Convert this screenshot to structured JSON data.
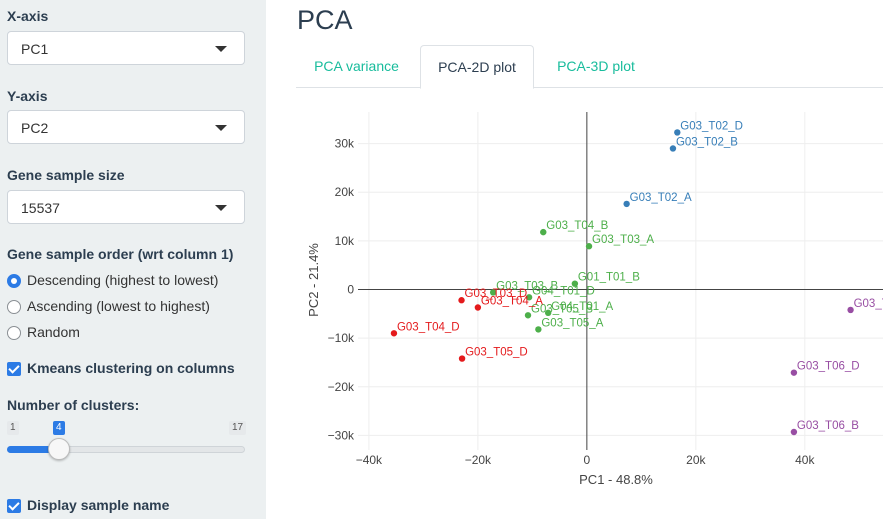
{
  "sidebar": {
    "x_axis": {
      "label": "X-axis",
      "value": "PC1"
    },
    "y_axis": {
      "label": "Y-axis",
      "value": "PC2"
    },
    "gene_sample_size": {
      "label": "Gene sample size",
      "value": "15537"
    },
    "gene_sample_order": {
      "label": "Gene sample order (wrt column 1)",
      "options": [
        "Descending (highest to lowest)",
        "Ascending (lowest to highest)",
        "Random"
      ],
      "selected": "Descending (highest to lowest)"
    },
    "kmeans": {
      "label": "Kmeans clustering on columns",
      "checked": true
    },
    "clusters": {
      "label": "Number of clusters:",
      "min": "1",
      "max": "17",
      "value": "4",
      "fraction": 0.1875
    },
    "display_names": {
      "label": "Display sample name",
      "checked": true
    }
  },
  "main": {
    "title": "PCA",
    "tabs": [
      {
        "label": "PCA variance",
        "active": false
      },
      {
        "label": "PCA-2D plot",
        "active": true
      },
      {
        "label": "PCA-3D plot",
        "active": false
      }
    ]
  },
  "colors": {
    "accent": "#2c7be5",
    "tab_link": "#18bc9c",
    "heading": "#2c3e50"
  },
  "chart_data": {
    "type": "scatter",
    "xlabel": "PC1 - 48.8%",
    "ylabel": "PC2 - 21.4%",
    "xlim": [
      -42000,
      56000
    ],
    "ylim": [
      -33000,
      36500
    ],
    "xticks": [
      -40000,
      -20000,
      0,
      20000,
      40000
    ],
    "xtick_labels": [
      "−40k",
      "−20k",
      "0",
      "20k",
      "40k"
    ],
    "yticks": [
      -30000,
      -20000,
      -10000,
      0,
      10000,
      20000,
      30000
    ],
    "ytick_labels": [
      "−30k",
      "−20k",
      "−10k",
      "0",
      "10k",
      "20k",
      "30k"
    ],
    "grid": true,
    "zero_lines": true,
    "series": [
      {
        "color": "#377eb8",
        "points": [
          {
            "label": "G03_T02_D",
            "x": 16600,
            "y": 32300
          },
          {
            "label": "G03_T02_B",
            "x": 15800,
            "y": 29000
          },
          {
            "label": "G03_T02_A",
            "x": 7300,
            "y": 17600
          }
        ]
      },
      {
        "color": "#4daf4a",
        "points": [
          {
            "label": "G03_T04_B",
            "x": -8000,
            "y": 11800
          },
          {
            "label": "G03_T03_A",
            "x": 400,
            "y": 8900
          },
          {
            "label": "G01_T01_B",
            "x": -2200,
            "y": 1200
          },
          {
            "label": "G03_T03_B",
            "x": -17200,
            "y": -600
          },
          {
            "label": "G04_T01_D",
            "x": -10600,
            "y": -1600
          },
          {
            "label": "G04_T01_A",
            "x": -7100,
            "y": -4800
          },
          {
            "label": "G03_T05_B",
            "x": -10800,
            "y": -5300
          },
          {
            "label": "G03_T05_A",
            "x": -8900,
            "y": -8200
          }
        ]
      },
      {
        "color": "#e41a1c",
        "points": [
          {
            "label": "G03_T03_D",
            "x": -23000,
            "y": -2200
          },
          {
            "label": "G03_T04_A",
            "x": -20000,
            "y": -3700
          },
          {
            "label": "G03_T04_D",
            "x": -35400,
            "y": -9000
          },
          {
            "label": "G03_T05_D",
            "x": -22900,
            "y": -14200
          }
        ]
      },
      {
        "color": "#984ea3",
        "points": [
          {
            "label": "G03_T",
            "x": 48400,
            "y": -4200
          },
          {
            "label": "G03_T06_D",
            "x": 38000,
            "y": -17100
          },
          {
            "label": "G03_T06_B",
            "x": 38000,
            "y": -29300
          }
        ]
      }
    ]
  }
}
